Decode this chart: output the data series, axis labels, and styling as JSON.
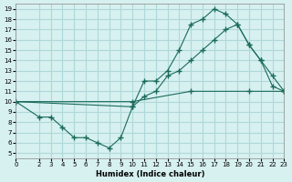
{
  "xlabel": "Humidex (Indice chaleur)",
  "background_color": "#d7f0f0",
  "grid_color": "#b0d8d8",
  "line_color": "#1a6b5a",
  "xlim": [
    0,
    23
  ],
  "ylim": [
    5,
    19
  ],
  "xticks": [
    0,
    2,
    3,
    4,
    5,
    6,
    7,
    8,
    9,
    10,
    11,
    12,
    13,
    14,
    15,
    16,
    17,
    18,
    19,
    20,
    21,
    22,
    23
  ],
  "yticks": [
    5,
    6,
    7,
    8,
    9,
    10,
    11,
    12,
    13,
    14,
    15,
    16,
    17,
    18,
    19
  ],
  "line1_x": [
    0,
    2,
    3,
    4,
    5,
    6,
    7,
    8,
    9,
    10,
    11,
    12,
    13,
    14,
    15,
    16,
    17,
    18,
    19,
    20,
    21,
    22,
    23
  ],
  "line1_y": [
    10,
    8.5,
    8.5,
    7.5,
    6.5,
    6.5,
    6.0,
    5.5,
    6.5,
    9.5,
    12,
    12.0,
    13.0,
    15.0,
    17.5,
    18.0,
    19.0,
    18.5,
    17.5,
    15.5,
    14.0,
    12.5,
    11.0
  ],
  "line2_x": [
    0,
    10,
    11,
    12,
    13,
    14,
    15,
    16,
    17,
    18,
    19,
    20,
    21,
    22,
    23
  ],
  "line2_y": [
    10,
    9.5,
    10.5,
    11.0,
    12.5,
    13.0,
    14.0,
    15.0,
    16.0,
    17.0,
    17.5,
    15.5,
    14.0,
    11.5,
    11.0
  ],
  "line3_x": [
    0,
    10,
    15,
    20,
    23
  ],
  "line3_y": [
    10,
    10.0,
    11.0,
    11.0,
    11.0
  ]
}
